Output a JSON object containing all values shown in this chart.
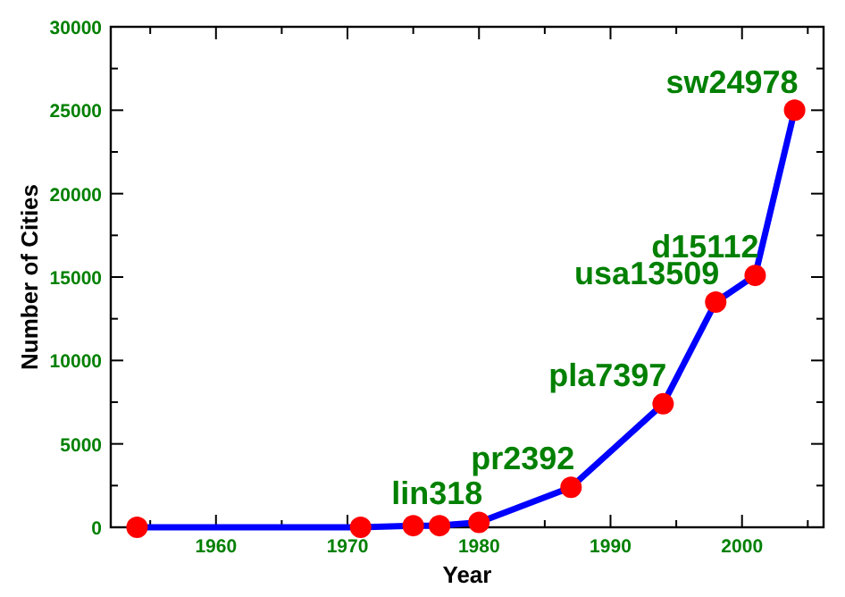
{
  "chart_data": {
    "type": "line",
    "xlabel": "Year",
    "ylabel": "Number of Cities",
    "x": [
      1954,
      1971,
      1975,
      1977,
      1980,
      1987,
      1994,
      1998,
      2001,
      2004
    ],
    "series": [
      {
        "color": "#0000ff",
        "values": [
          0,
          0,
          100,
          100,
          300,
          2400,
          7400,
          13500,
          15100,
          25000
        ]
      }
    ],
    "marker": "circle",
    "line_style": "solid",
    "grid": false,
    "xlim": [
      1952,
      2006.2
    ],
    "xticks": [
      {
        "value": 1955,
        "label": null
      },
      1960,
      {
        "value": 1965,
        "label": null
      },
      1970,
      {
        "value": 1975,
        "label": null
      },
      1980,
      {
        "value": 1985,
        "label": null
      },
      1990,
      {
        "value": 1995,
        "label": null
      },
      2000,
      {
        "value": 2005,
        "label": null
      }
    ],
    "ylim": [
      0,
      30000
    ],
    "yticks": [
      0,
      {
        "value": 2500,
        "label": null
      },
      5000,
      {
        "value": 7500,
        "label": null
      },
      10000,
      {
        "value": 12500,
        "label": null
      },
      15000,
      {
        "value": 17500,
        "label": null
      },
      20000,
      {
        "value": 22500,
        "label": null
      },
      25000,
      {
        "value": 27500,
        "label": null
      },
      30000
    ],
    "annotations": [
      {
        "text": "lin318",
        "x": 1980,
        "y": 318
      },
      {
        "text": "pr2392",
        "x": 1987,
        "y": 2392
      },
      {
        "text": "pla7397",
        "x": 1994,
        "y": 7397
      },
      {
        "text": "usa13509",
        "x": 1998,
        "y": 13509
      },
      {
        "text": "d15112",
        "x": 2001,
        "y": 15112
      },
      {
        "text": "sw24978",
        "x": 2004,
        "y": 24978
      }
    ]
  }
}
